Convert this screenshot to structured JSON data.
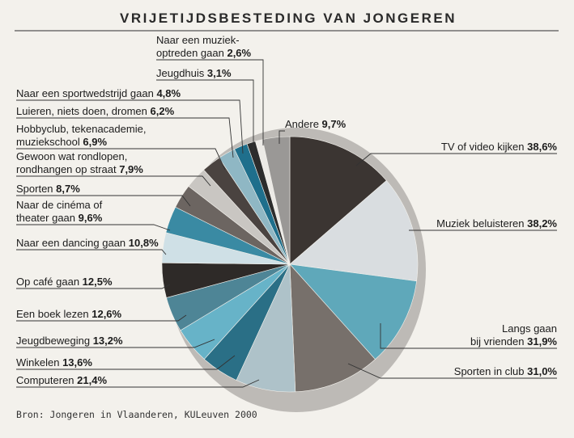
{
  "chart_data": {
    "type": "pie",
    "title": "VRIJETIJDSBESTEDING VAN JONGEREN",
    "source": "Bron: Jongeren in Vlaanderen, KULeuven 2000",
    "slices": [
      {
        "lines": [
          "TV of video kijken"
        ],
        "value": 38.6,
        "label": "38,6%",
        "color": "#3b3532"
      },
      {
        "lines": [
          "Muziek beluisteren"
        ],
        "value": 38.2,
        "label": "38,2%",
        "color": "#d9dde0"
      },
      {
        "lines": [
          "Langs gaan",
          "bij vrienden"
        ],
        "value": 31.9,
        "label": "31,9%",
        "color": "#5fa8ba"
      },
      {
        "lines": [
          "Sporten in club"
        ],
        "value": 31.0,
        "label": "31,0%",
        "color": "#77706b"
      },
      {
        "lines": [
          "Computeren"
        ],
        "value": 21.4,
        "label": "21,4%",
        "color": "#aec2c9"
      },
      {
        "lines": [
          "Winkelen"
        ],
        "value": 13.6,
        "label": "13,6%",
        "color": "#2a6f86"
      },
      {
        "lines": [
          "Jeugdbeweging"
        ],
        "value": 13.2,
        "label": "13,2%",
        "color": "#67b3c8"
      },
      {
        "lines": [
          "Een boek lezen"
        ],
        "value": 12.6,
        "label": "12,6%",
        "color": "#4e8596"
      },
      {
        "lines": [
          "Op café gaan"
        ],
        "value": 12.5,
        "label": "12,5%",
        "color": "#2e2a28"
      },
      {
        "lines": [
          "Naar een dancing gaan"
        ],
        "value": 10.8,
        "label": "10,8%",
        "color": "#cfe0e6"
      },
      {
        "lines": [
          "Naar de cinéma of",
          "theater gaan"
        ],
        "value": 9.6,
        "label": "9,6%",
        "color": "#3a8aa3"
      },
      {
        "lines": [
          "Sporten"
        ],
        "value": 8.7,
        "label": "8,7%",
        "color": "#6c6561"
      },
      {
        "lines": [
          "Gewoon wat rondlopen,",
          "rondhangen op straat"
        ],
        "value": 7.9,
        "label": "7,9%",
        "color": "#c9c6c2"
      },
      {
        "lines": [
          "Hobbyclub, tekenacademie,",
          "muziekschool"
        ],
        "value": 6.9,
        "label": "6,9%",
        "color": "#4a4340"
      },
      {
        "lines": [
          "Luieren, niets doen, dromen"
        ],
        "value": 6.2,
        "label": "6,2%",
        "color": "#8fb7c4"
      },
      {
        "lines": [
          "Naar een sportwedstrijd gaan"
        ],
        "value": 4.8,
        "label": "4,8%",
        "color": "#1f6f8c"
      },
      {
        "lines": [
          "Jeugdhuis"
        ],
        "value": 3.1,
        "label": "3,1%",
        "color": "#2c2c2c"
      },
      {
        "lines": [
          "Naar een muziek-",
          "optreden gaan"
        ],
        "value": 2.6,
        "label": "2,6%",
        "color": "#eceae6"
      },
      {
        "lines": [
          "Andere"
        ],
        "value": 9.7,
        "label": "9,7%",
        "color": "#9a9896"
      }
    ]
  }
}
